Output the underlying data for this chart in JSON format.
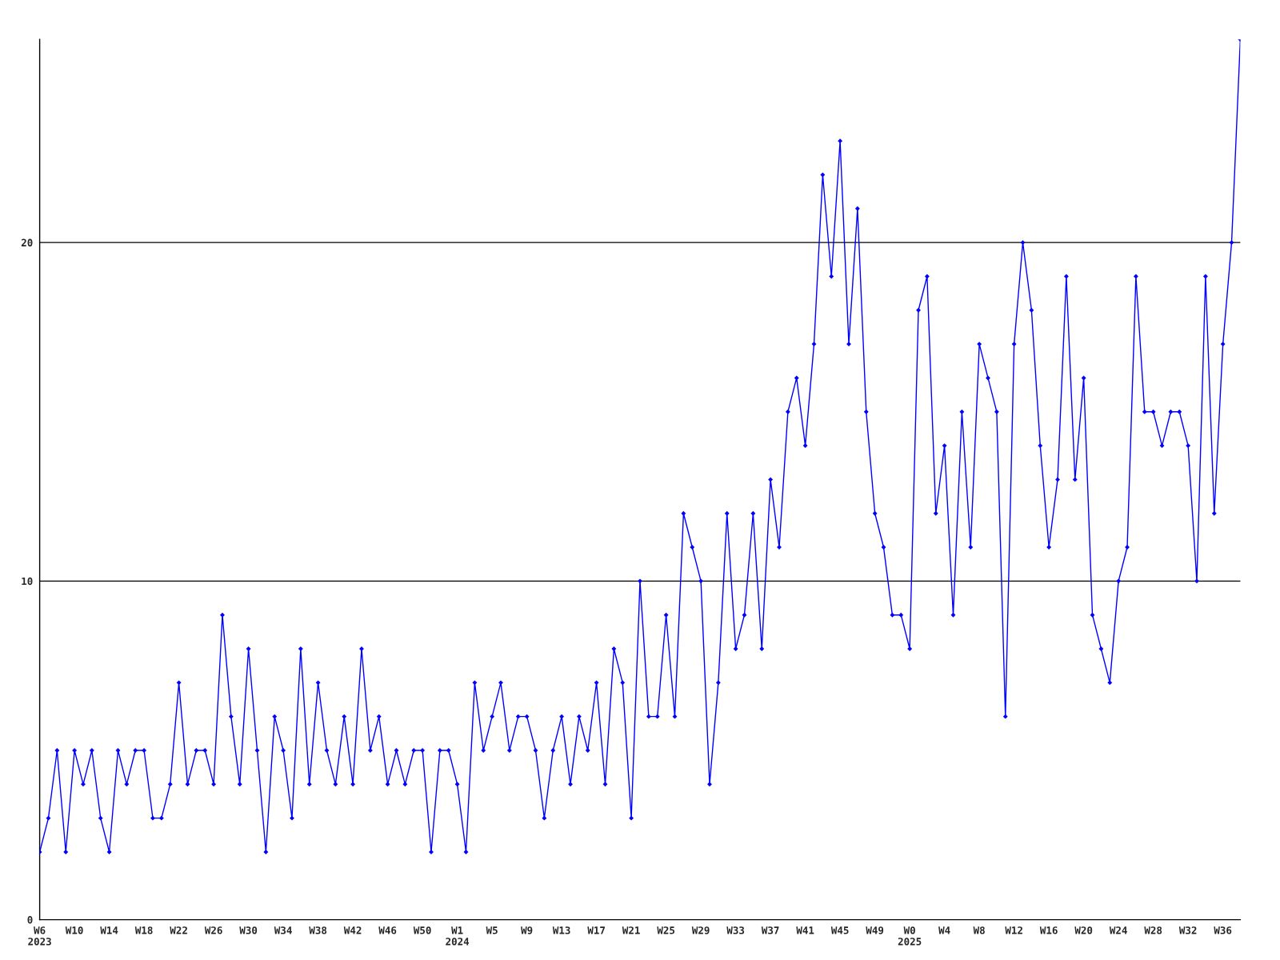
{
  "chart_data": {
    "type": "line",
    "categories": [
      "W6\n2023",
      null,
      null,
      null,
      "W10",
      null,
      null,
      null,
      "W14",
      null,
      null,
      null,
      "W18",
      null,
      null,
      null,
      "W22",
      null,
      null,
      null,
      "W26",
      null,
      null,
      null,
      "W30",
      null,
      null,
      null,
      "W34",
      null,
      null,
      null,
      "W38",
      null,
      null,
      null,
      "W42",
      null,
      null,
      null,
      "W46",
      null,
      null,
      null,
      "W50",
      null,
      null,
      null,
      "W1\n2024",
      null,
      null,
      null,
      "W5",
      null,
      null,
      null,
      "W9",
      null,
      null,
      null,
      "W13",
      null,
      null,
      null,
      "W17",
      null,
      null,
      null,
      "W21",
      null,
      null,
      null,
      "W25",
      null,
      null,
      null,
      "W29",
      null,
      null,
      null,
      "W33",
      null,
      null,
      null,
      "W37",
      null,
      null,
      null,
      "W41",
      null,
      null,
      null,
      "W45",
      null,
      null,
      null,
      "W49",
      null,
      null,
      null,
      "W0\n2025",
      null,
      null,
      null,
      "W4",
      null,
      null,
      null,
      "W8",
      null,
      null,
      null,
      "W12",
      null,
      null,
      null,
      "W16",
      null,
      null,
      null,
      "W20",
      null,
      null,
      null,
      "W24",
      null,
      null,
      null,
      "W28",
      null,
      null,
      null,
      "W32",
      null,
      null,
      null,
      "W36",
      null,
      null
    ],
    "series": [
      {
        "color": "#0000ff",
        "values": [
          2,
          3,
          5,
          2,
          5,
          4,
          5,
          3,
          2,
          5,
          4,
          5,
          5,
          3,
          3,
          4,
          7,
          4,
          5,
          5,
          4,
          9,
          6,
          4,
          8,
          5,
          2,
          6,
          5,
          3,
          8,
          4,
          7,
          5,
          4,
          6,
          4,
          8,
          5,
          6,
          4,
          5,
          4,
          5,
          5,
          2,
          5,
          5,
          4,
          2,
          7,
          5,
          6,
          7,
          5,
          6,
          6,
          5,
          3,
          5,
          6,
          4,
          6,
          5,
          7,
          4,
          8,
          7,
          3,
          10,
          6,
          6,
          9,
          6,
          12,
          11,
          10,
          4,
          7,
          12,
          8,
          9,
          12,
          8,
          13,
          11,
          15,
          16,
          14,
          17,
          22,
          19,
          23,
          17,
          21,
          15,
          12,
          11,
          9,
          9,
          8,
          18,
          19,
          12,
          14,
          9,
          15,
          11,
          17,
          16,
          15,
          6,
          17,
          20,
          18,
          14,
          11,
          13,
          19,
          13,
          16,
          9,
          8,
          7,
          10,
          11,
          19,
          15,
          15,
          14,
          15,
          15,
          14,
          10,
          19,
          12,
          17,
          20,
          26
        ]
      }
    ],
    "ylim": [
      0,
      26
    ],
    "yticks": [
      0,
      10,
      20
    ],
    "grid": "y",
    "marker": "diamond",
    "line_style": "solid"
  }
}
